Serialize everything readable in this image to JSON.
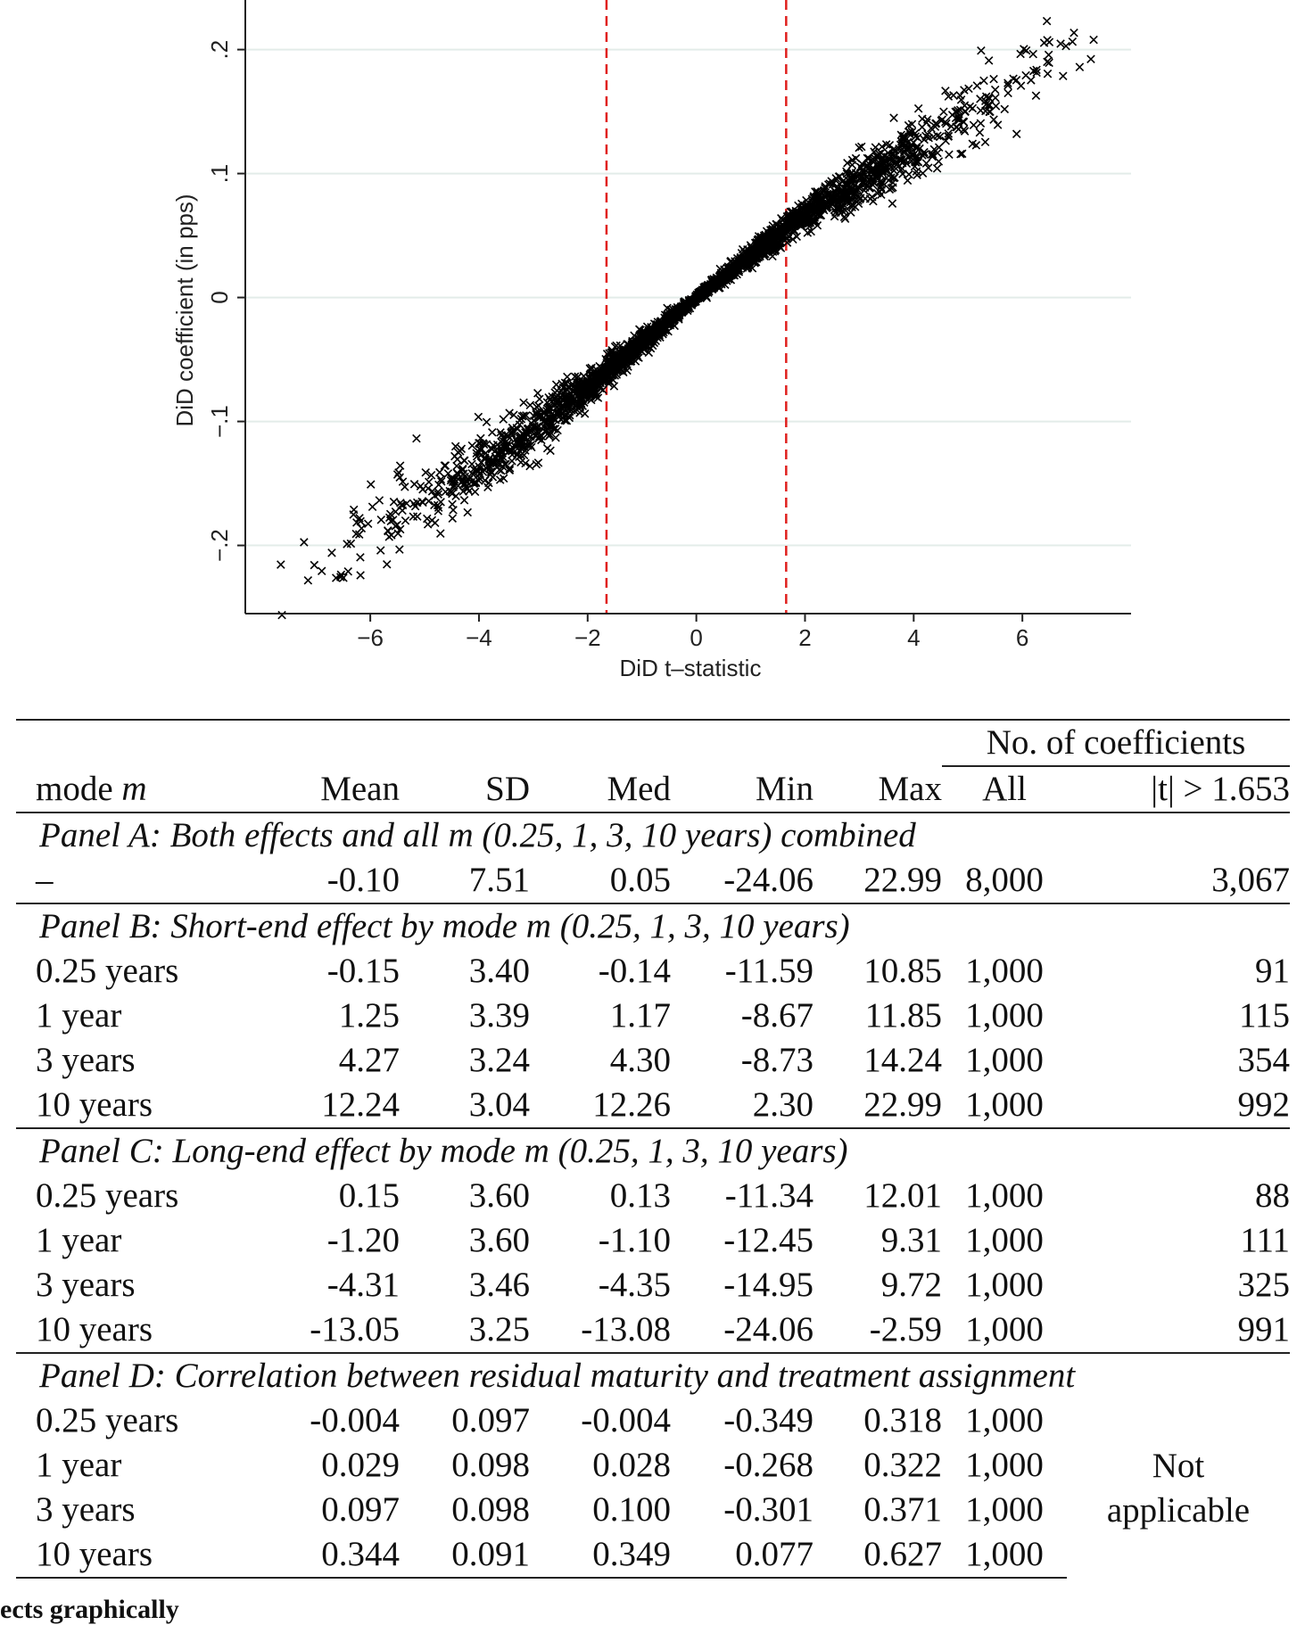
{
  "chart_data": {
    "type": "scatter",
    "title": "",
    "xlabel": "DiD t–statistic",
    "ylabel": "DiD coefficient (in pps)",
    "xlim": [
      -8.3,
      8.0
    ],
    "ylim": [
      -0.255,
      0.24
    ],
    "xticks": [
      -6,
      -4,
      -2,
      0,
      2,
      4,
      6
    ],
    "xtick_labels": [
      "−6",
      "−4",
      "−2",
      "0",
      "2",
      "4",
      "6"
    ],
    "yticks": [
      -0.2,
      -0.1,
      0,
      0.1,
      0.2
    ],
    "ytick_labels": [
      "−.2",
      "−.1",
      "0",
      ".1",
      ".2"
    ],
    "grid": "horizontal",
    "marker": "x",
    "marker_color": "#000000",
    "cutoff_lines": [
      -1.653,
      1.653
    ],
    "cutoff_color": "#e0201e",
    "trend": [
      {
        "t": -7.7,
        "coef": -0.236
      },
      {
        "t": -6.0,
        "coef": -0.188
      },
      {
        "t": -4.0,
        "coef": -0.138
      },
      {
        "t": -2.0,
        "coef": -0.073
      },
      {
        "t": 0.0,
        "coef": 0.0
      },
      {
        "t": 2.0,
        "coef": 0.067
      },
      {
        "t": 4.0,
        "coef": 0.118
      },
      {
        "t": 6.0,
        "coef": 0.178
      },
      {
        "t": 7.7,
        "coef": 0.228
      }
    ],
    "n_points": 8000
  },
  "table": {
    "group_header": "No. of coefficients",
    "columns": [
      "mode m",
      "Mean",
      "SD",
      "Med",
      "Min",
      "Max",
      "All",
      "|t| > 1.653"
    ],
    "panels": [
      {
        "title": "Panel A: Both effects and all m (0.25, 1, 3, 10 years) combined",
        "rows": [
          [
            "–",
            "-0.10",
            "7.51",
            "0.05",
            "-24.06",
            "22.99",
            "8,000",
            "3,067"
          ]
        ]
      },
      {
        "title": "Panel B: Short-end effect by mode m (0.25, 1, 3, 10 years)",
        "rows": [
          [
            "0.25 years",
            "-0.15",
            "3.40",
            "-0.14",
            "-11.59",
            "10.85",
            "1,000",
            "91"
          ],
          [
            "1 year",
            "1.25",
            "3.39",
            "1.17",
            "-8.67",
            "11.85",
            "1,000",
            "115"
          ],
          [
            "3 years",
            "4.27",
            "3.24",
            "4.30",
            "-8.73",
            "14.24",
            "1,000",
            "354"
          ],
          [
            "10 years",
            "12.24",
            "3.04",
            "12.26",
            "2.30",
            "22.99",
            "1,000",
            "992"
          ]
        ]
      },
      {
        "title": "Panel C: Long-end effect by mode m (0.25, 1, 3, 10 years)",
        "rows": [
          [
            "0.25 years",
            "0.15",
            "3.60",
            "0.13",
            "-11.34",
            "12.01",
            "1,000",
            "88"
          ],
          [
            "1 year",
            "-1.20",
            "3.60",
            "-1.10",
            "-12.45",
            "9.31",
            "1,000",
            "111"
          ],
          [
            "3 years",
            "-4.31",
            "3.46",
            "-4.35",
            "-14.95",
            "9.72",
            "1,000",
            "325"
          ],
          [
            "10 years",
            "-13.05",
            "3.25",
            "-13.08",
            "-24.06",
            "-2.59",
            "1,000",
            "991"
          ]
        ]
      },
      {
        "title": "Panel D: Correlation between residual maturity and treatment assignment",
        "rows": [
          [
            "0.25 years",
            "-0.004",
            "0.097",
            "-0.004",
            "-0.349",
            "0.318",
            "1,000"
          ],
          [
            "1 year",
            "0.029",
            "0.098",
            "0.028",
            "-0.268",
            "0.322",
            "1,000"
          ],
          [
            "3 years",
            "0.097",
            "0.098",
            "0.100",
            "-0.301",
            "0.371",
            "1,000"
          ],
          [
            "10 years",
            "0.344",
            "0.091",
            "0.349",
            "0.077",
            "0.627",
            "1,000"
          ]
        ],
        "merged_note_line1": "Not",
        "merged_note_line2": "applicable"
      }
    ]
  },
  "footer_fragment": "ects graphically"
}
